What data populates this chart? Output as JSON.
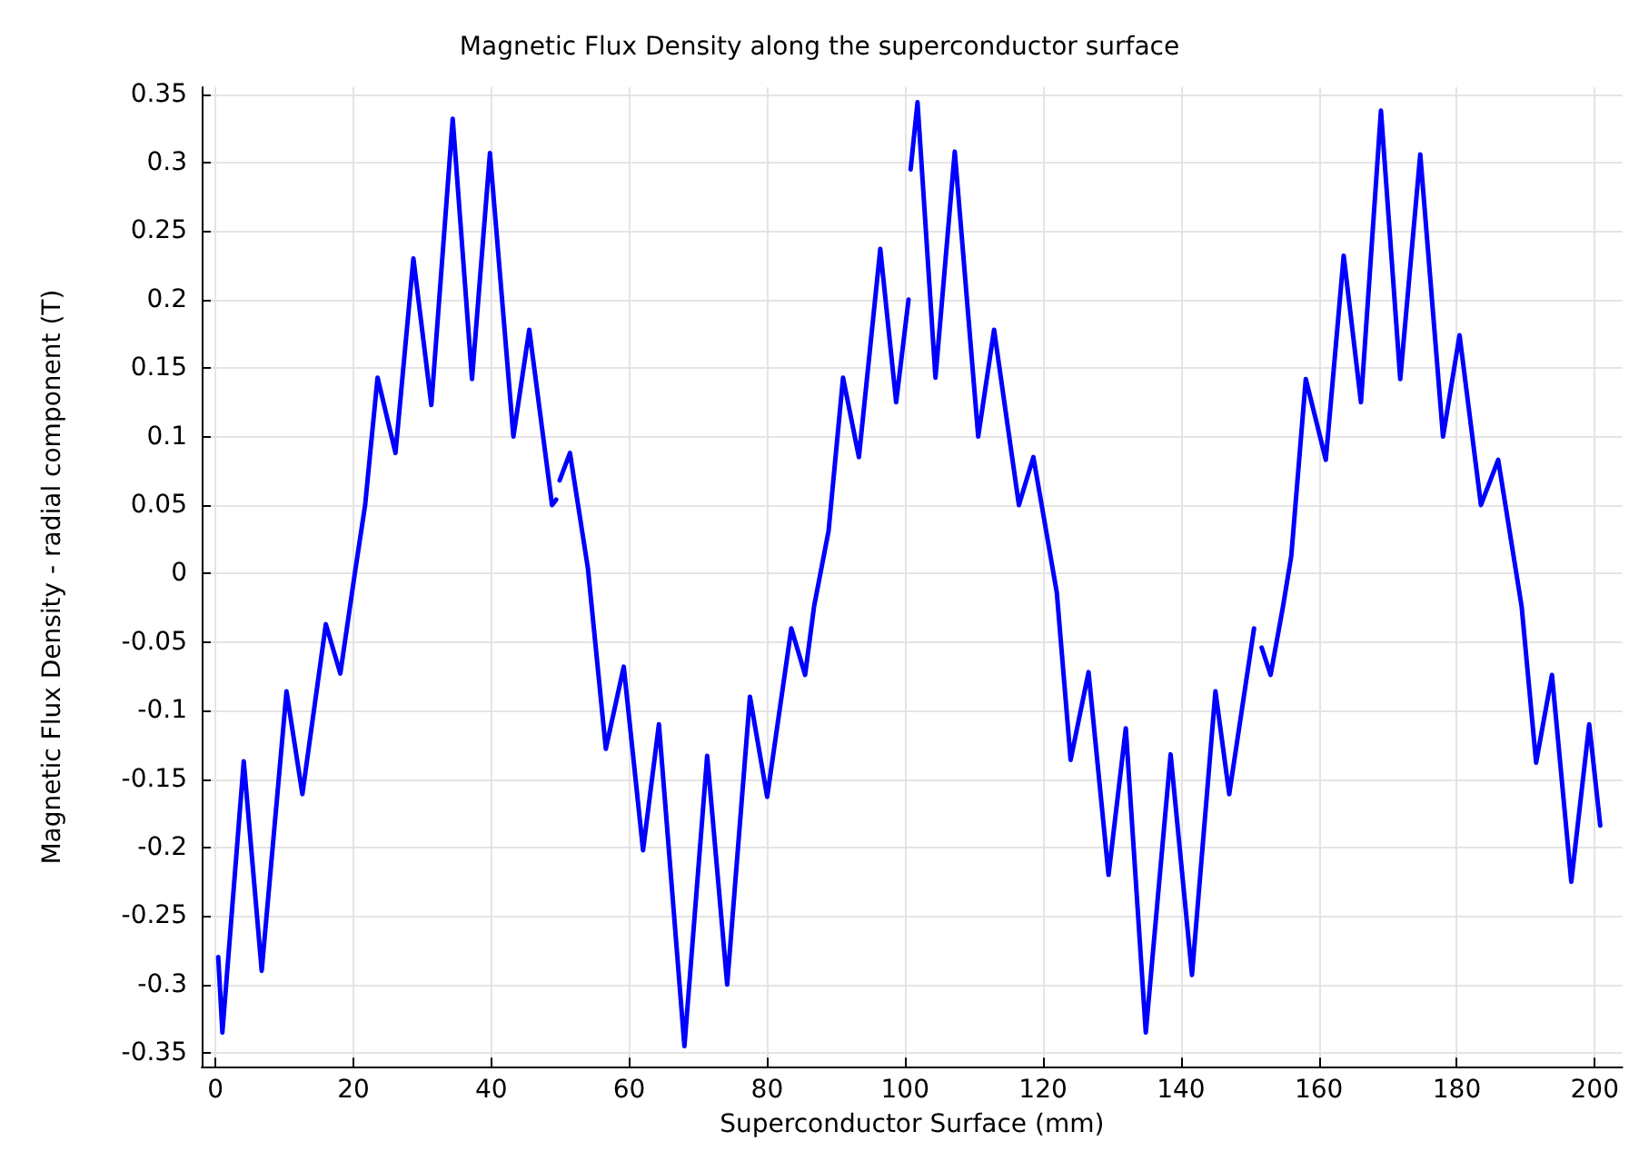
{
  "chart_data": {
    "type": "line",
    "title": "Magnetic Flux Density along the superconductor surface",
    "xlabel": "Superconductor Surface (mm)",
    "ylabel": "Magnetic Flux Density - radial component (T)",
    "x": [
      0.4,
      1.0,
      4.1,
      6.7,
      10.3,
      12.6,
      16,
      18.1,
      20.2,
      21.7,
      23.5,
      26.1,
      28.7,
      31.3,
      34.4,
      37.2,
      39.8,
      43.2,
      45.5,
      48.8,
      49.4,
      49.6,
      49.9,
      51.4,
      54,
      56.6,
      59.2,
      62,
      64.3,
      68,
      71.3,
      74.2,
      77.5,
      80,
      83.5,
      85.5,
      86.8,
      88.9,
      91,
      93.3,
      96.4,
      98.7,
      100.5,
      100.6,
      100.8,
      101.8,
      104.4,
      107.2,
      110.6,
      112.9,
      116.5,
      118.6,
      122,
      124,
      126.6,
      129.5,
      132,
      134.9,
      138.5,
      141.6,
      145,
      147,
      150.6,
      151.1,
      151.7,
      153,
      154.8,
      156,
      158.1,
      161,
      163.6,
      166.1,
      169,
      171.8,
      174.7,
      178,
      180.4,
      183.5,
      186,
      189.4,
      191.5,
      193.8,
      196.6,
      199.2,
      200.8
    ],
    "values": [
      -0.28,
      -0.335,
      -0.137,
      -0.29,
      -0.086,
      -0.161,
      -0.037,
      -0.073,
      0,
      0.05,
      0.143,
      0.088,
      0.23,
      0.123,
      0.332,
      0.142,
      0.307,
      0.1,
      0.178,
      0.05,
      0.054,
      null,
      0.068,
      0.088,
      0.004,
      -0.128,
      -0.068,
      -0.202,
      -0.11,
      -0.345,
      -0.133,
      -0.3,
      -0.09,
      -0.163,
      -0.04,
      -0.074,
      -0.024,
      0.031,
      0.143,
      0.085,
      0.237,
      0.125,
      0.2,
      null,
      0.295,
      0.344,
      0.143,
      0.308,
      0.1,
      0.178,
      0.05,
      0.085,
      -0.014,
      -0.136,
      -0.072,
      -0.22,
      -0.113,
      -0.335,
      -0.132,
      -0.293,
      -0.086,
      -0.161,
      -0.04,
      null,
      -0.054,
      -0.074,
      -0.024,
      0.013,
      0.142,
      0.083,
      0.232,
      0.125,
      0.338,
      0.142,
      0.306,
      0.1,
      0.174,
      0.05,
      0.083,
      -0.024,
      -0.138,
      -0.074,
      -0.225,
      -0.11,
      -0.184
    ],
    "color": "#0000ff",
    "xlim": [
      -2,
      204
    ],
    "xticks": [
      0,
      20,
      40,
      60,
      80,
      100,
      120,
      140,
      160,
      180,
      200
    ],
    "ylim": [
      -0.36,
      0.355
    ],
    "yticks": [
      -0.35,
      -0.3,
      -0.25,
      -0.2,
      -0.15,
      -0.1,
      -0.05,
      0,
      0.05,
      0.1,
      0.15,
      0.2,
      0.25,
      0.3,
      0.35
    ],
    "grid": true,
    "marker": "none",
    "line_style": "solid"
  }
}
